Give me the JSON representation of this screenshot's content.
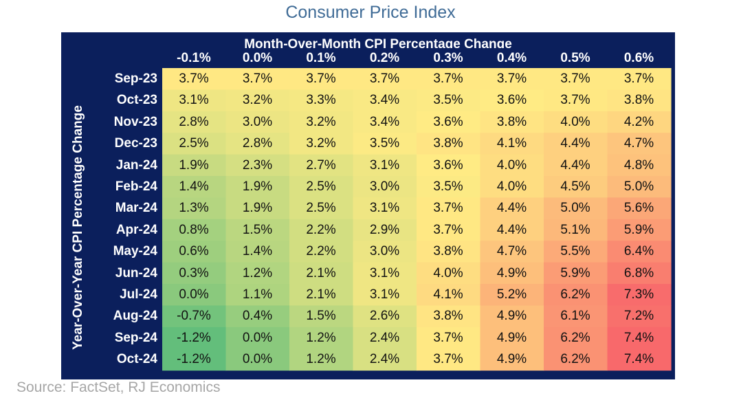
{
  "title": "Consumer Price Index",
  "source": "Source: FactSet, RJ Economics",
  "chart_data": {
    "type": "heatmap",
    "title": "Consumer Price Index",
    "col_header": "Month-Over-Month CPI Percentage Change",
    "row_header": "Year-Over-Year CPI Percentage Change",
    "columns": [
      "-0.1%",
      "0.0%",
      "0.1%",
      "0.2%",
      "0.3%",
      "0.4%",
      "0.5%",
      "0.6%"
    ],
    "rows": [
      "Sep-23",
      "Oct-23",
      "Nov-23",
      "Dec-23",
      "Jan-24",
      "Feb-24",
      "Mar-24",
      "Apr-24",
      "May-24",
      "Jun-24",
      "Jul-24",
      "Aug-24",
      "Sep-24",
      "Oct-24"
    ],
    "values": [
      [
        3.7,
        3.7,
        3.7,
        3.7,
        3.7,
        3.7,
        3.7,
        3.7
      ],
      [
        3.1,
        3.2,
        3.3,
        3.4,
        3.5,
        3.6,
        3.7,
        3.8
      ],
      [
        2.8,
        3.0,
        3.2,
        3.4,
        3.6,
        3.8,
        4.0,
        4.2
      ],
      [
        2.5,
        2.8,
        3.2,
        3.5,
        3.8,
        4.1,
        4.4,
        4.7
      ],
      [
        1.9,
        2.3,
        2.7,
        3.1,
        3.6,
        4.0,
        4.4,
        4.8
      ],
      [
        1.4,
        1.9,
        2.5,
        3.0,
        3.5,
        4.0,
        4.5,
        5.0
      ],
      [
        1.3,
        1.9,
        2.5,
        3.1,
        3.7,
        4.4,
        5.0,
        5.6
      ],
      [
        0.8,
        1.5,
        2.2,
        2.9,
        3.7,
        4.4,
        5.1,
        5.9
      ],
      [
        0.6,
        1.4,
        2.2,
        3.0,
        3.8,
        4.7,
        5.5,
        6.4
      ],
      [
        0.3,
        1.2,
        2.1,
        3.1,
        4.0,
        4.9,
        5.9,
        6.8
      ],
      [
        0.0,
        1.1,
        2.1,
        3.1,
        4.1,
        5.2,
        6.2,
        7.3
      ],
      [
        -0.7,
        0.4,
        1.5,
        2.6,
        3.8,
        4.9,
        6.1,
        7.2
      ],
      [
        -1.2,
        0.0,
        1.2,
        2.4,
        3.7,
        4.9,
        6.2,
        7.4
      ],
      [
        -1.2,
        0.0,
        1.2,
        2.4,
        3.7,
        4.9,
        6.2,
        7.4
      ]
    ],
    "value_suffix": "%",
    "color_scale": {
      "low": "#63be7b",
      "mid": "#ffeb84",
      "high": "#f8696b"
    }
  }
}
